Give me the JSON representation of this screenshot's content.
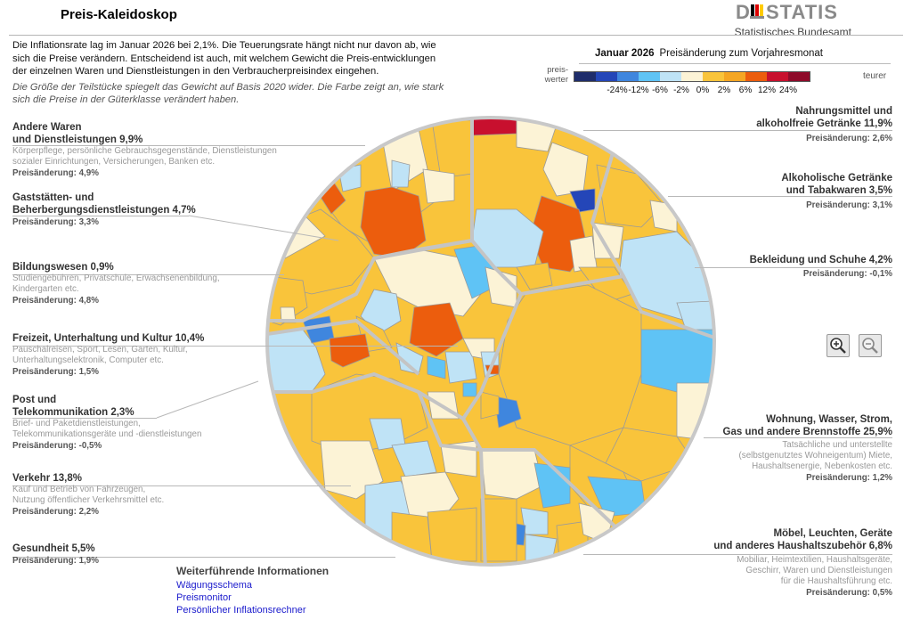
{
  "header": {
    "title": "Preis-Kaleidoskop",
    "logo_word": "DESTATIS",
    "logo_sub": "Statistisches Bundesamt"
  },
  "intro": {
    "text": "Die Inflationsrate lag im Januar 2026 bei 2,1%. Die Teuerungsrate hängt nicht nur davon ab, wie sich die Preise verändern. Entscheidend ist auch, mit welchem Gewicht die Preis-entwicklungen der einzelnen Waren und Dienstleistungen in den Verbraucherpreisindex eingehen.",
    "note": "Die Größe der Teilstücke spiegelt das Gewicht auf Basis 2020 wider. Die Farbe zeigt an, wie stark sich die Preise in der Güterklasse verändert haben."
  },
  "legend": {
    "month": "Januar 2026",
    "title": "Preisänderung zum Vorjahresmonat",
    "left_label": "preis-\nwerter",
    "right_label": "teurer",
    "colors": [
      "#1f2d6b",
      "#2446b8",
      "#3f86de",
      "#5fc3f5",
      "#bfe3f6",
      "#fcf3d6",
      "#f9c43b",
      "#f5a623",
      "#ec5d0d",
      "#c8102e",
      "#8e0b2a"
    ],
    "ticks": [
      "-24%",
      "-12%",
      "-6%",
      "-2%",
      "0%",
      "2%",
      "6%",
      "12%",
      "24%"
    ]
  },
  "categories": [
    {
      "name": "Andere Waren\nund Dienstleistungen 9,9%",
      "desc": "Körperpflege, persönliche Gebrauchsgegenstände, Dienstleistungen\nsozialer Einrichtungen, Versicherungen, Banken etc.",
      "change": "Preisänderung: 4,9%"
    },
    {
      "name": "Gaststätten- und\nBeherbergungsdienstleistungen 4,7%",
      "desc": "",
      "change": "Preisänderung: 3,3%"
    },
    {
      "name": "Bildungswesen 0,9%",
      "desc": "Studiengebühren, Privatschule, Erwachsenenbildung,\nKindergarten etc.",
      "change": "Preisänderung: 4,8%"
    },
    {
      "name": "Freizeit, Unterhaltung und Kultur 10,4%",
      "desc": "Pauschalreisen, Sport, Lesen, Garten, Kultur,\nUnterhaltungselektronik, Computer etc.",
      "change": "Preisänderung: 1,5%"
    },
    {
      "name": "Post und\nTelekommunikation 2,3%",
      "desc": "Brief- und Paketdienstleistungen,\nTelekommunikationsgeräte und -dienstleistungen",
      "change": "Preisänderung: -0,5%"
    },
    {
      "name": "Verkehr 13,8%",
      "desc": "Kauf und Betrieb von Fahrzeugen,\nNutzung öffentlicher Verkehrsmittel etc.",
      "change": "Preisänderung: 2,2%"
    },
    {
      "name": "Gesundheit 5,5%",
      "desc": "",
      "change": "Preisänderung: 1,9%"
    },
    {
      "name": "Nahrungsmittel und\nalkoholfreie Getränke 11,9%",
      "desc": "",
      "change": "Preisänderung: 2,6%"
    },
    {
      "name": "Alkoholische Getränke\nund Tabakwaren 3,5%",
      "desc": "",
      "change": "Preisänderung: 3,1%"
    },
    {
      "name": "Bekleidung und Schuhe 4,2%",
      "desc": "",
      "change": "Preisänderung: -0,1%"
    },
    {
      "name": "Wohnung, Wasser, Strom,\nGas und andere Brennstoffe 25,9%",
      "desc": "Tatsächliche und unterstellte\n(selbstgenutztes Wohneigentum) Miete,\nHaushaltsenergie, Nebenkosten etc.",
      "change": "Preisänderung: 1,2%"
    },
    {
      "name": "Möbel, Leuchten, Geräte\nund anderes Haushaltszubehör 6,8%",
      "desc": "Mobiliar, Heimtextilien, Haushaltsgeräte,\nGeschirr, Waren und Dienstleistungen\nfür die Haushaltsführung etc.",
      "change": "Preisänderung: 0,5%"
    }
  ],
  "zoom": {
    "in_icon": "zoom-in-icon",
    "out_icon": "zoom-out-icon"
  },
  "info": {
    "heading": "Weiterführende Informationen",
    "links": [
      "Wägungsschema",
      "Preismonitor",
      "Persönlicher Inflationsrechner"
    ]
  }
}
